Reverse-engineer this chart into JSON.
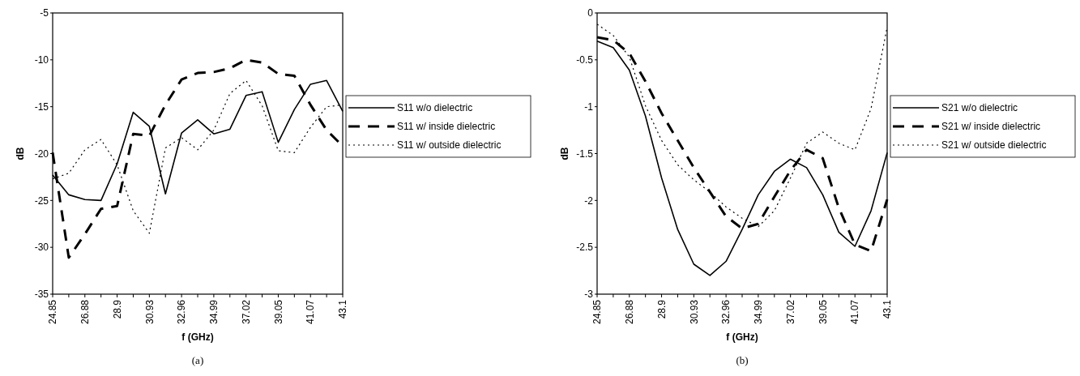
{
  "chart_data": [
    {
      "type": "line",
      "xlabel": "f (GHz)",
      "ylabel": "dB",
      "categories": [
        "24.85",
        null,
        "26.88",
        null,
        "28.9",
        null,
        "30.93",
        null,
        "32.96",
        null,
        "34.99",
        null,
        "37.02",
        null,
        "39.05",
        null,
        "41.07",
        null,
        "43.1"
      ],
      "ylim": [
        -35,
        -5
      ],
      "yticks": [
        -35,
        -30,
        -25,
        -20,
        -15,
        -10,
        -5
      ],
      "legend": "right",
      "annotations": [
        "(a)"
      ],
      "series": [
        {
          "name": "S11 w/o dielectric",
          "color": "#000000",
          "line_style": "solid",
          "values": [
            -22.3,
            -24.4,
            -24.9,
            -25.0,
            -21.1,
            -15.6,
            -17.1,
            -24.3,
            -17.8,
            -16.4,
            -17.9,
            -17.4,
            -13.8,
            -13.4,
            -18.8,
            -15.3,
            -12.6,
            -12.2,
            -15.5
          ]
        },
        {
          "name": "S11 w/ inside dielectric",
          "color": "#000000",
          "line_style": "dashed",
          "values": [
            -19.9,
            -31.1,
            -28.6,
            -25.9,
            -25.6,
            -17.9,
            -18.1,
            -14.8,
            -12.1,
            -11.4,
            -11.3,
            -10.9,
            -10.0,
            -10.3,
            -11.5,
            -11.7,
            -14.8,
            -17.5,
            -19.2
          ]
        },
        {
          "name": "S11 w/ outside dielectric",
          "color": "#000000",
          "line_style": "dotted",
          "values": [
            -22.7,
            -22.1,
            -19.6,
            -18.5,
            -21.2,
            -26.1,
            -28.5,
            -19.4,
            -18.3,
            -19.6,
            -17.5,
            -13.6,
            -12.2,
            -14.9,
            -19.7,
            -19.9,
            -17.2,
            -15.0,
            -14.8
          ]
        }
      ]
    },
    {
      "type": "line",
      "xlabel": "f (GHz)",
      "ylabel": "dB",
      "categories": [
        "24.85",
        null,
        "26.88",
        null,
        "28.9",
        null,
        "30.93",
        null,
        "32.96",
        null,
        "34.99",
        null,
        "37.02",
        null,
        "39.05",
        null,
        "41.07",
        null,
        "43.1"
      ],
      "ylim": [
        -3,
        0
      ],
      "yticks": [
        -3,
        -2.5,
        -2,
        -1.5,
        -1,
        -0.5,
        0
      ],
      "legend": "right",
      "annotations": [
        "(b)"
      ],
      "series": [
        {
          "name": "S21 w/o dielectric",
          "color": "#000000",
          "line_style": "solid",
          "values": [
            -0.3,
            -0.37,
            -0.61,
            -1.1,
            -1.76,
            -2.31,
            -2.68,
            -2.8,
            -2.65,
            -2.31,
            -1.94,
            -1.69,
            -1.56,
            -1.65,
            -1.94,
            -2.34,
            -2.49,
            -2.11,
            -1.49
          ]
        },
        {
          "name": "S21 w/ inside dielectric",
          "color": "#000000",
          "line_style": "dashed",
          "values": [
            -0.26,
            -0.29,
            -0.43,
            -0.73,
            -1.07,
            -1.36,
            -1.65,
            -1.91,
            -2.17,
            -2.3,
            -2.25,
            -1.96,
            -1.68,
            -1.46,
            -1.55,
            -2.08,
            -2.47,
            -2.54,
            -1.99
          ]
        },
        {
          "name": "S21 w/ outside dielectric",
          "color": "#000000",
          "line_style": "dotted",
          "values": [
            -0.12,
            -0.24,
            -0.47,
            -0.99,
            -1.36,
            -1.62,
            -1.78,
            -1.91,
            -2.07,
            -2.19,
            -2.28,
            -2.11,
            -1.76,
            -1.39,
            -1.27,
            -1.39,
            -1.46,
            -1.02,
            -0.15
          ]
        }
      ]
    }
  ]
}
